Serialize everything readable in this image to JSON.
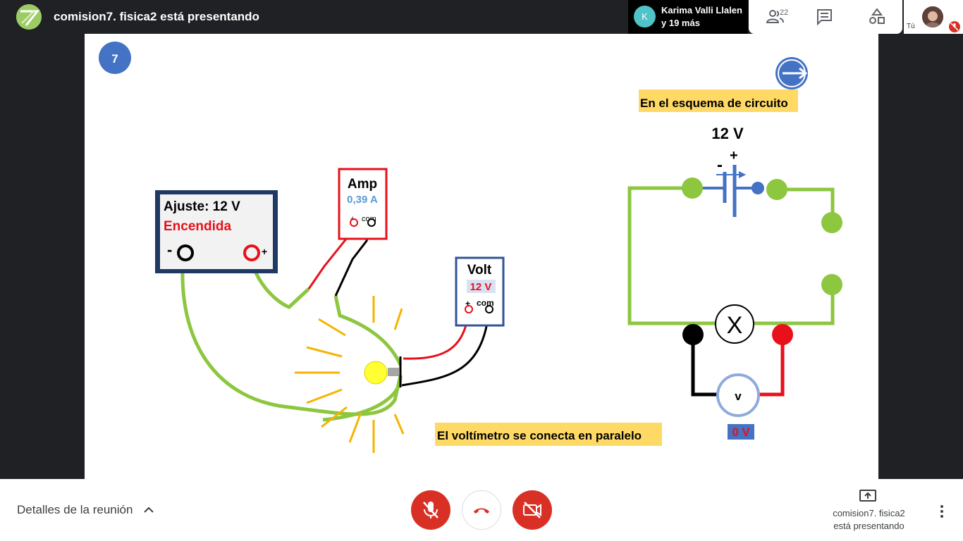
{
  "header": {
    "logo_icon": "meet-slide-logo",
    "title": "comision7. fisica2 está presentando"
  },
  "speaker": {
    "avatar_letter": "K",
    "name_line1": "Karima Valli Llalen",
    "name_line2": "y 19 más"
  },
  "toolbar": {
    "people_count": "22",
    "people_icon": "people-icon",
    "chat_icon": "chat-icon",
    "activities_icon": "activities-icon"
  },
  "self_view": {
    "label": "Tú",
    "mic_status": "muted"
  },
  "slide": {
    "slide_number": "7",
    "power_supply": {
      "line1": "Ajuste: 12 V",
      "line2": "Encendida",
      "minus": "-",
      "plus": "+"
    },
    "ammeter": {
      "title": "Amp",
      "value": "0,39 A",
      "plus": "+",
      "com": "com"
    },
    "voltmeter": {
      "title": "Volt",
      "value": "12 V",
      "plus": "+",
      "com": "com"
    },
    "caption": "El voltímetro se conecta en paralelo",
    "schematic": {
      "title": "En el esquema de circuito",
      "source_voltage": "12 V",
      "minus": "-",
      "plus": "+",
      "lamp_symbol": "X",
      "meter_symbol": "v",
      "meter_reading": "0 V"
    },
    "colors": {
      "wire_green": "#8dc63f",
      "wire_red": "#e8101a",
      "wire_black": "#000000",
      "accent_blue": "#4472c4",
      "highlight": "#ffd966"
    }
  },
  "bottom": {
    "details_label": "Detalles de la reunión",
    "presenting_line1": "comision7. fisica2",
    "presenting_line2": "está presentando",
    "colors": {
      "danger": "#d93025"
    }
  }
}
